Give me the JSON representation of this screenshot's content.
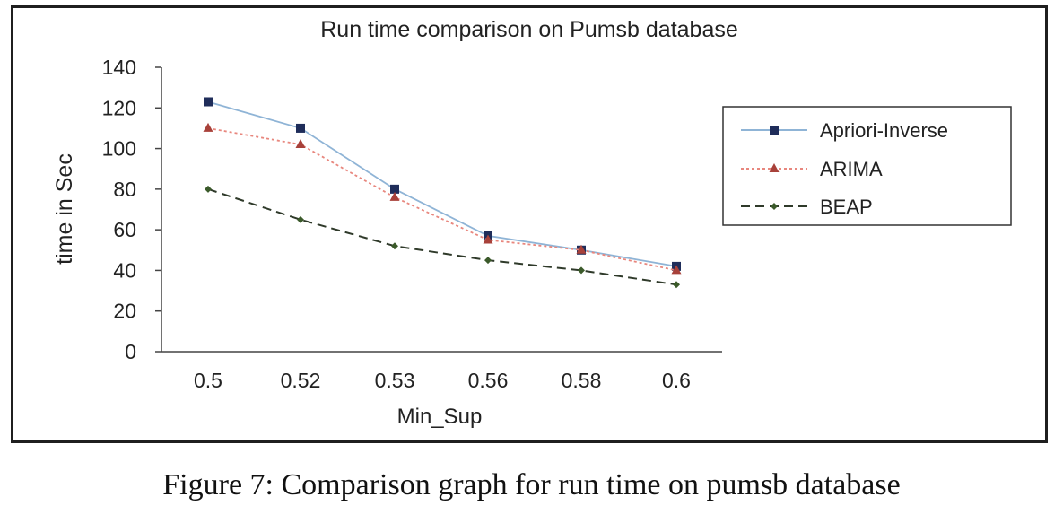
{
  "chart_data": {
    "type": "line",
    "title": "Run time comparison on Pumsb database",
    "xlabel": "Min_Sup",
    "ylabel": "time in Sec",
    "categories": [
      "0.5",
      "0.52",
      "0.53",
      "0.56",
      "0.58",
      "0.6"
    ],
    "ylim": [
      0,
      140
    ],
    "yticks": [
      0,
      20,
      40,
      60,
      80,
      100,
      120,
      140
    ],
    "grid": false,
    "legend_position": "right",
    "series": [
      {
        "name": "Apriori-Inverse",
        "values": [
          123,
          110,
          80,
          57,
          50,
          42
        ],
        "color": "#8fb4d6",
        "marker": "square",
        "marker_color": "#1f2d5a",
        "dash": "solid"
      },
      {
        "name": "ARIMA",
        "values": [
          110,
          102,
          76,
          55,
          50,
          40
        ],
        "color": "#e8877e",
        "marker": "triangle",
        "marker_color": "#a8413a",
        "dash": "dotted"
      },
      {
        "name": "BEAP",
        "values": [
          80,
          65,
          52,
          45,
          40,
          33
        ],
        "color": "#2f3a2a",
        "marker": "diamond",
        "marker_color": "#3b5a2a",
        "dash": "dashed"
      }
    ]
  },
  "caption": "Figure 7: Comparison graph for run time on pumsb database"
}
